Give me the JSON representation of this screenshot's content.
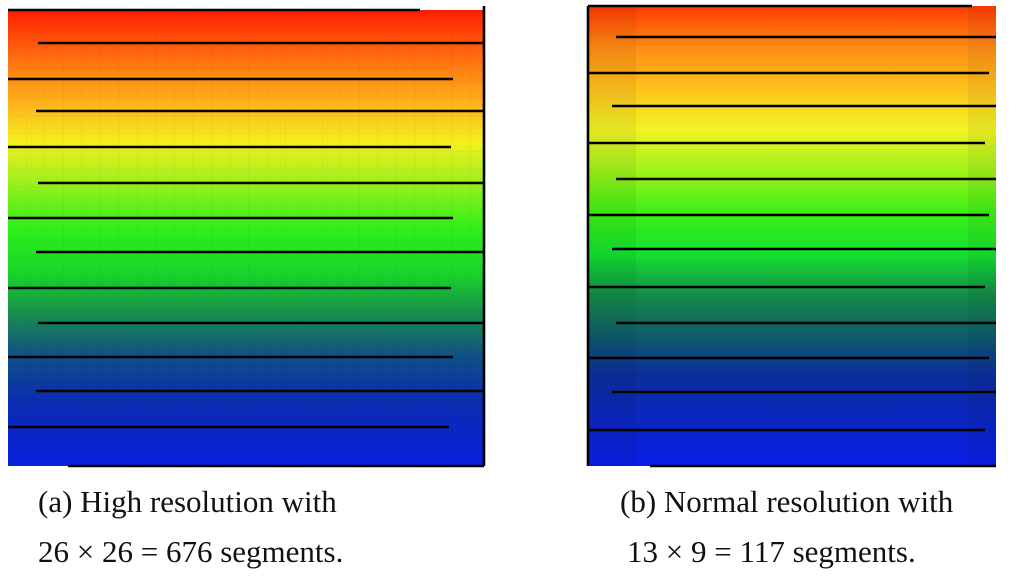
{
  "figure": {
    "panels": [
      {
        "id": "a",
        "caption_line1": "(a) High resolution with",
        "caption_line2": "26 × 26 = 676 segments.",
        "grid_cols": 26,
        "grid_rows": 26,
        "segments": 676
      },
      {
        "id": "b",
        "caption_line1": "(b) Normal resolution with",
        "caption_line2": "13 × 9 = 117 segments.",
        "grid_cols": 13,
        "grid_rows": 9,
        "segments": 117
      }
    ],
    "colors": {
      "gradient_top": "#ff2a00",
      "gradient_bottom": "#0a14e6",
      "path_line": "#000000"
    }
  }
}
